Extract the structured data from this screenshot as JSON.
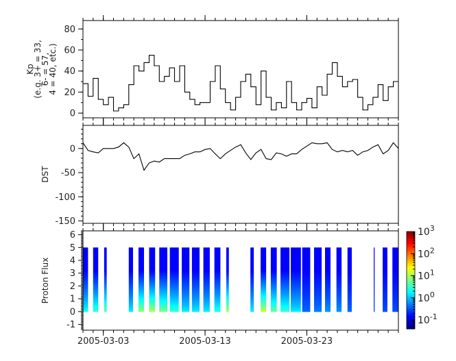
{
  "chart_data": [
    {
      "type": "line",
      "step": true,
      "ylabel": [
        "Kp",
        "(e.g. 3+ = 33,",
        "6- = 57,",
        "4 = 40, etc.)"
      ],
      "ylim": [
        -4.5,
        88
      ],
      "yticks": [
        0,
        20,
        40,
        60,
        80
      ],
      "x_start": "2005-03-01T00:00",
      "x_step_hours": 12,
      "color": "#000000",
      "values": [
        28,
        16,
        33,
        13,
        8,
        15,
        2,
        5,
        8,
        27,
        45,
        40,
        48,
        55,
        45,
        30,
        35,
        43,
        30,
        45,
        20,
        13,
        8,
        10,
        10,
        30,
        45,
        23,
        10,
        3,
        15,
        30,
        37,
        25,
        8,
        40,
        15,
        3,
        10,
        5,
        30,
        10,
        3,
        10,
        14,
        5,
        25,
        17,
        37,
        48,
        35,
        25,
        30,
        32,
        15,
        3,
        8,
        15,
        27,
        12,
        25,
        30
      ]
    },
    {
      "type": "line",
      "ylabel": "DST",
      "ylim": [
        -155,
        48
      ],
      "yticks": [
        0,
        -50,
        -100,
        -150
      ],
      "x_start": "2005-03-01T00:00",
      "x_step_hours": 12,
      "color": "#000000",
      "values": [
        12,
        -4,
        -7,
        -9,
        0,
        0,
        0,
        3,
        12,
        3,
        -21,
        -11,
        -45,
        -30,
        -26,
        -28,
        -21,
        -21,
        -21,
        -21,
        -14,
        -11,
        -7,
        -7,
        -2,
        0,
        -11,
        -21,
        -11,
        -4,
        3,
        8,
        -9,
        -23,
        -9,
        -2,
        -21,
        -23,
        -9,
        -11,
        -16,
        -11,
        -11,
        -2,
        5,
        12,
        10,
        10,
        12,
        -2,
        -7,
        -4,
        -7,
        -4,
        -14,
        -7,
        -4,
        3,
        8,
        -11,
        -4,
        12,
        0
      ]
    },
    {
      "type": "heatmap",
      "ylabel": "Proton Flux",
      "ylim": [
        -1.45,
        6.3
      ],
      "yticks": [
        -1,
        0,
        1,
        2,
        3,
        4,
        5,
        6
      ],
      "channels": [
        0,
        1,
        2,
        3,
        4,
        5
      ],
      "colorbar": {
        "scale": "log",
        "range_log10": [
          -1.4,
          3
        ],
        "ticks": [
          {
            "base": "10",
            "exp": "3",
            "v": 3
          },
          {
            "base": "10",
            "exp": "2",
            "v": 2
          },
          {
            "base": "10",
            "exp": "1",
            "v": 1
          },
          {
            "base": "10",
            "exp": "0",
            "v": 0
          },
          {
            "base": "10",
            "exp": "-1",
            "v": -1
          }
        ],
        "colormap": "jet"
      },
      "intervals": [
        {
          "start": "2005-03-01T00:00",
          "end": "2005-03-01T12:00",
          "low_channel_log10_flux": 0.3
        },
        {
          "start": "2005-03-02T00:00",
          "end": "2005-03-02T12:00",
          "low_channel_log10_flux": 0.5
        },
        {
          "start": "2005-03-03T02:00",
          "end": "2005-03-03T08:00",
          "low_channel_log10_flux": 0.7
        },
        {
          "start": "2005-03-05T12:00",
          "end": "2005-03-05T22:00",
          "low_channel_log10_flux": 0.2
        },
        {
          "start": "2005-03-06T11:00",
          "end": "2005-03-07T00:00",
          "low_channel_log10_flux": 0.9
        },
        {
          "start": "2005-03-07T12:00",
          "end": "2005-03-08T02:00",
          "low_channel_log10_flux": 1.0
        },
        {
          "start": "2005-03-08T12:00",
          "end": "2005-03-09T07:00",
          "low_channel_log10_flux": 0.8
        },
        {
          "start": "2005-03-09T13:00",
          "end": "2005-03-10T10:00",
          "low_channel_log10_flux": 0.5
        },
        {
          "start": "2005-03-10T17:00",
          "end": "2005-03-11T11:00",
          "low_channel_log10_flux": 0.2
        },
        {
          "start": "2005-03-11T17:00",
          "end": "2005-03-12T11:00",
          "low_channel_log10_flux": 0.2
        },
        {
          "start": "2005-03-12T20:00",
          "end": "2005-03-13T11:00",
          "low_channel_log10_flux": 0.2
        },
        {
          "start": "2005-03-13T22:00",
          "end": "2005-03-14T12:00",
          "low_channel_log10_flux": 0.4
        },
        {
          "start": "2005-03-15T02:00",
          "end": "2005-03-15T08:00",
          "low_channel_log10_flux": 1.0
        },
        {
          "start": "2005-03-17T11:00",
          "end": "2005-03-17T19:00",
          "low_channel_log10_flux": 0.2
        },
        {
          "start": "2005-03-18T11:00",
          "end": "2005-03-19T00:00",
          "low_channel_log10_flux": 1.1
        },
        {
          "start": "2005-03-19T11:00",
          "end": "2005-03-20T01:00",
          "low_channel_log10_flux": 0.7
        },
        {
          "start": "2005-03-20T10:00",
          "end": "2005-03-21T07:00",
          "low_channel_log10_flux": 0.5
        },
        {
          "start": "2005-03-21T10:00",
          "end": "2005-03-22T10:00",
          "low_channel_log10_flux": 0.2
        },
        {
          "start": "2005-03-22T13:00",
          "end": "2005-03-23T08:00",
          "low_channel_log10_flux": -0.4
        },
        {
          "start": "2005-03-23T17:00",
          "end": "2005-03-24T11:00",
          "low_channel_log10_flux": -0.3
        },
        {
          "start": "2005-03-24T19:00",
          "end": "2005-03-25T08:00",
          "low_channel_log10_flux": -0.2
        },
        {
          "start": "2005-03-25T22:00",
          "end": "2005-03-26T10:00",
          "low_channel_log10_flux": -0.2
        },
        {
          "start": "2005-03-27T00:00",
          "end": "2005-03-27T10:00",
          "low_channel_log10_flux": -0.4
        },
        {
          "start": "2005-03-29T14:00",
          "end": "2005-03-29T16:00",
          "low_channel_log10_flux": -0.6
        },
        {
          "start": "2005-03-30T11:00",
          "end": "2005-03-30T22:00",
          "low_channel_log10_flux": -0.5
        },
        {
          "start": "2005-03-31T10:00",
          "end": "2005-04-01T00:00",
          "low_channel_log10_flux": -0.5
        }
      ]
    }
  ],
  "x_axis": {
    "xlim": [
      "2005-03-01T00:00",
      "2005-04-01T00:00"
    ],
    "major_ticks": [
      "2005-03-03",
      "2005-03-13",
      "2005-03-23"
    ],
    "minor_tick": "1 day"
  }
}
